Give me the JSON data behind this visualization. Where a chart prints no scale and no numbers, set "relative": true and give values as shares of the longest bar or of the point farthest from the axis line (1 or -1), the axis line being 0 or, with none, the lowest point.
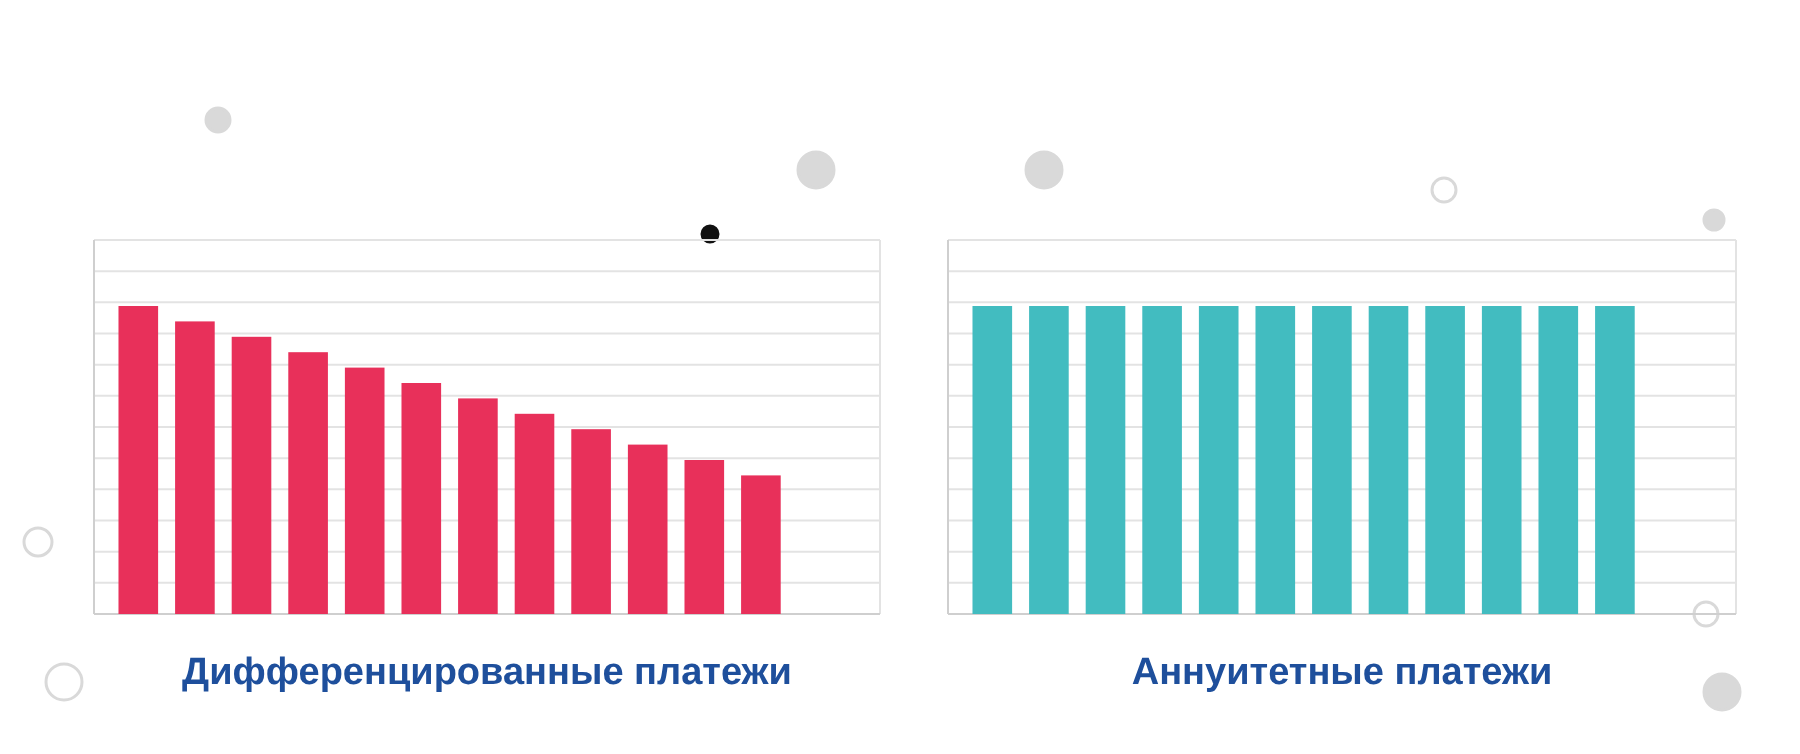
{
  "chart_data": [
    {
      "type": "bar",
      "title": "Дифференцированные платежи",
      "relative": true,
      "grid": true,
      "categories": [
        null,
        null,
        null,
        null,
        null,
        null,
        null,
        null,
        null,
        null,
        null,
        null
      ],
      "color": "#e8305a",
      "values": [
        1,
        0.95,
        0.9,
        0.85,
        0.8,
        0.75,
        0.7,
        0.65,
        0.6,
        0.55,
        0.5,
        0.45
      ]
    },
    {
      "type": "bar",
      "title": "Аннуитетные платежи",
      "relative": true,
      "grid": true,
      "categories": [
        null,
        null,
        null,
        null,
        null,
        null,
        null,
        null,
        null,
        null,
        null,
        null
      ],
      "color": "#42bcc0",
      "values": [
        1,
        1,
        1,
        1,
        1,
        1,
        1,
        1,
        1,
        1,
        1,
        1
      ]
    }
  ]
}
